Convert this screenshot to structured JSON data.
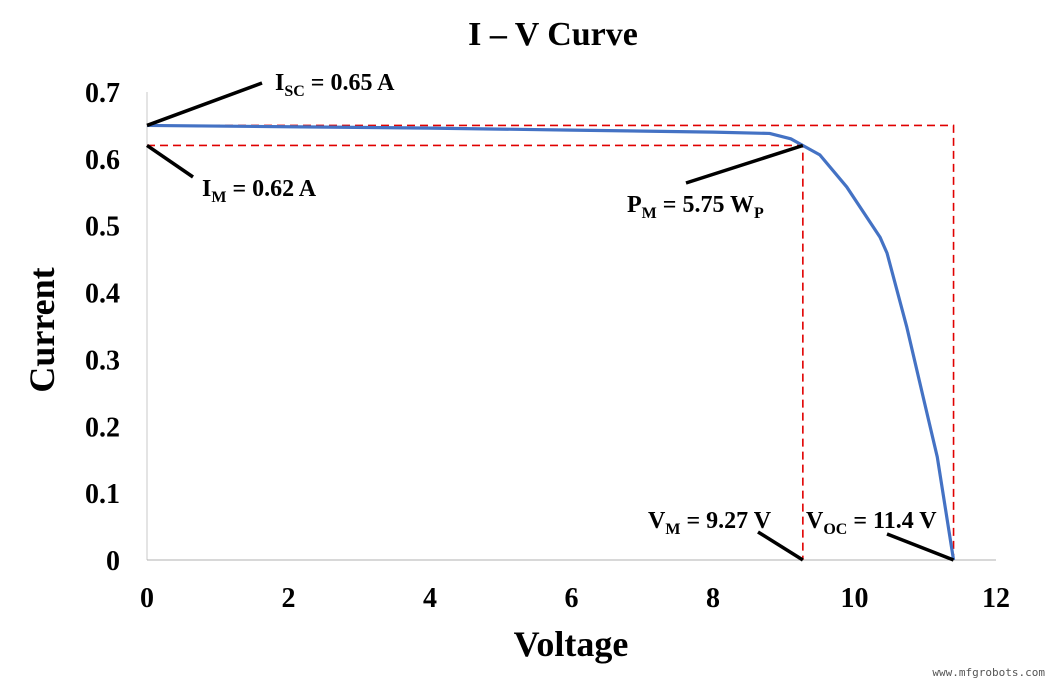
{
  "chart_data": {
    "type": "line",
    "title": "I – V Curve",
    "xlabel": "Voltage",
    "ylabel": "Current",
    "xlim": [
      0,
      12
    ],
    "ylim": [
      0,
      0.7
    ],
    "xticks": [
      0,
      2,
      4,
      6,
      8,
      10,
      12
    ],
    "yticks": [
      "0",
      "0.1",
      "0.2",
      "0.3",
      "0.4",
      "0.5",
      "0.6",
      "0.7"
    ],
    "grid": false,
    "series": [
      {
        "color": "#4472C4",
        "x": [
          0,
          2,
          4,
          6,
          8,
          8.8,
          9.1,
          9.27,
          9.51,
          9.89,
          10.36,
          10.46,
          10.74,
          10.97,
          11.17,
          11.4
        ],
        "y": [
          0.65,
          0.648,
          0.646,
          0.643,
          0.64,
          0.638,
          0.63,
          0.62,
          0.606,
          0.558,
          0.483,
          0.459,
          0.348,
          0.244,
          0.154,
          0
        ]
      }
    ],
    "reference_lines": {
      "color": "#E00000",
      "isc": 0.65,
      "im": 0.62,
      "vm": 9.27,
      "voc": 11.4
    },
    "annotations": [
      {
        "main": "I",
        "sub": "SC",
        "rest": " = 0.65 A",
        "x": 0,
        "y": 0.65
      },
      {
        "main": "I",
        "sub": "M",
        "rest": " = 0.62 A",
        "x": 0,
        "y": 0.62
      },
      {
        "main": "P",
        "sub": "M",
        "rest": " = 5.75 W",
        "sub2": "P",
        "x": 9.27,
        "y": 0.62
      },
      {
        "main": "V",
        "sub": "M",
        "rest": " = 9.27 V",
        "x": 9.27,
        "y": 0
      },
      {
        "main": "V",
        "sub": "OC",
        "rest": " = 11.4 V",
        "x": 11.4,
        "y": 0
      }
    ]
  },
  "watermark": "www.mfgrobots.com"
}
